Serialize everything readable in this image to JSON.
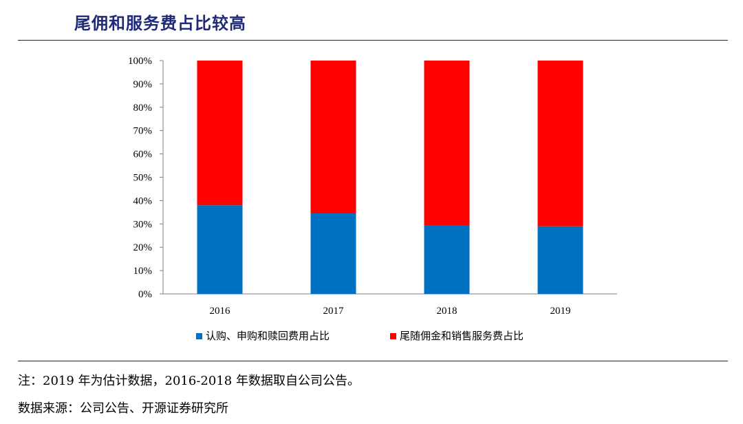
{
  "title": "尾佣和服务费占比较高",
  "note": "注：2019 年为估计数据，2016-2018 年数据取自公司公告。",
  "source": "数据来源：公司公告、开源证券研究所",
  "chart_data": {
    "type": "bar",
    "stacked": true,
    "percent": true,
    "categories": [
      "2016",
      "2017",
      "2018",
      "2019"
    ],
    "series": [
      {
        "name": "认购、申购和赎回费用占比",
        "color": "#0070C0",
        "values": [
          38,
          34.5,
          29.5,
          29
        ]
      },
      {
        "name": "尾随佣金和销售服务费占比",
        "color": "#FF0000",
        "values": [
          62,
          65.5,
          70.5,
          71
        ]
      }
    ],
    "y_ticks": [
      "0%",
      "10%",
      "20%",
      "30%",
      "40%",
      "50%",
      "60%",
      "70%",
      "80%",
      "90%",
      "100%"
    ],
    "ylim": [
      0,
      100
    ],
    "grid": false,
    "legend_position": "bottom"
  }
}
